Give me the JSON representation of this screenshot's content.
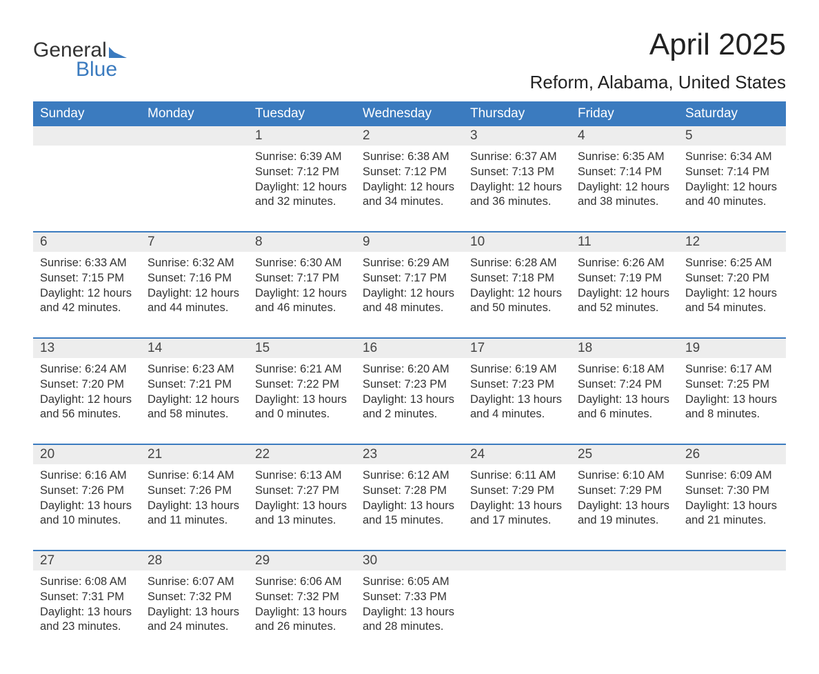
{
  "logo": {
    "word1": "General",
    "word2": "Blue",
    "color_gray": "#333333",
    "color_blue": "#3b7bbf"
  },
  "title": "April 2025",
  "location": "Reform, Alabama, United States",
  "style": {
    "header_bg": "#3b7bbf",
    "header_text": "#ffffff",
    "daynum_bg": "#ededed",
    "week_border": "#3b7bbf",
    "body_text": "#333333",
    "title_fontsize": 44,
    "location_fontsize": 26,
    "weekday_fontsize": 19,
    "cell_fontsize": 16.5,
    "columns": 7
  },
  "weekdays": [
    "Sunday",
    "Monday",
    "Tuesday",
    "Wednesday",
    "Thursday",
    "Friday",
    "Saturday"
  ],
  "weeks": [
    [
      {
        "day": ""
      },
      {
        "day": ""
      },
      {
        "day": "1",
        "sunrise": "6:39 AM",
        "sunset": "7:12 PM",
        "daylight": "12 hours and 32 minutes."
      },
      {
        "day": "2",
        "sunrise": "6:38 AM",
        "sunset": "7:12 PM",
        "daylight": "12 hours and 34 minutes."
      },
      {
        "day": "3",
        "sunrise": "6:37 AM",
        "sunset": "7:13 PM",
        "daylight": "12 hours and 36 minutes."
      },
      {
        "day": "4",
        "sunrise": "6:35 AM",
        "sunset": "7:14 PM",
        "daylight": "12 hours and 38 minutes."
      },
      {
        "day": "5",
        "sunrise": "6:34 AM",
        "sunset": "7:14 PM",
        "daylight": "12 hours and 40 minutes."
      }
    ],
    [
      {
        "day": "6",
        "sunrise": "6:33 AM",
        "sunset": "7:15 PM",
        "daylight": "12 hours and 42 minutes."
      },
      {
        "day": "7",
        "sunrise": "6:32 AM",
        "sunset": "7:16 PM",
        "daylight": "12 hours and 44 minutes."
      },
      {
        "day": "8",
        "sunrise": "6:30 AM",
        "sunset": "7:17 PM",
        "daylight": "12 hours and 46 minutes."
      },
      {
        "day": "9",
        "sunrise": "6:29 AM",
        "sunset": "7:17 PM",
        "daylight": "12 hours and 48 minutes."
      },
      {
        "day": "10",
        "sunrise": "6:28 AM",
        "sunset": "7:18 PM",
        "daylight": "12 hours and 50 minutes."
      },
      {
        "day": "11",
        "sunrise": "6:26 AM",
        "sunset": "7:19 PM",
        "daylight": "12 hours and 52 minutes."
      },
      {
        "day": "12",
        "sunrise": "6:25 AM",
        "sunset": "7:20 PM",
        "daylight": "12 hours and 54 minutes."
      }
    ],
    [
      {
        "day": "13",
        "sunrise": "6:24 AM",
        "sunset": "7:20 PM",
        "daylight": "12 hours and 56 minutes."
      },
      {
        "day": "14",
        "sunrise": "6:23 AM",
        "sunset": "7:21 PM",
        "daylight": "12 hours and 58 minutes."
      },
      {
        "day": "15",
        "sunrise": "6:21 AM",
        "sunset": "7:22 PM",
        "daylight": "13 hours and 0 minutes."
      },
      {
        "day": "16",
        "sunrise": "6:20 AM",
        "sunset": "7:23 PM",
        "daylight": "13 hours and 2 minutes."
      },
      {
        "day": "17",
        "sunrise": "6:19 AM",
        "sunset": "7:23 PM",
        "daylight": "13 hours and 4 minutes."
      },
      {
        "day": "18",
        "sunrise": "6:18 AM",
        "sunset": "7:24 PM",
        "daylight": "13 hours and 6 minutes."
      },
      {
        "day": "19",
        "sunrise": "6:17 AM",
        "sunset": "7:25 PM",
        "daylight": "13 hours and 8 minutes."
      }
    ],
    [
      {
        "day": "20",
        "sunrise": "6:16 AM",
        "sunset": "7:26 PM",
        "daylight": "13 hours and 10 minutes."
      },
      {
        "day": "21",
        "sunrise": "6:14 AM",
        "sunset": "7:26 PM",
        "daylight": "13 hours and 11 minutes."
      },
      {
        "day": "22",
        "sunrise": "6:13 AM",
        "sunset": "7:27 PM",
        "daylight": "13 hours and 13 minutes."
      },
      {
        "day": "23",
        "sunrise": "6:12 AM",
        "sunset": "7:28 PM",
        "daylight": "13 hours and 15 minutes."
      },
      {
        "day": "24",
        "sunrise": "6:11 AM",
        "sunset": "7:29 PM",
        "daylight": "13 hours and 17 minutes."
      },
      {
        "day": "25",
        "sunrise": "6:10 AM",
        "sunset": "7:29 PM",
        "daylight": "13 hours and 19 minutes."
      },
      {
        "day": "26",
        "sunrise": "6:09 AM",
        "sunset": "7:30 PM",
        "daylight": "13 hours and 21 minutes."
      }
    ],
    [
      {
        "day": "27",
        "sunrise": "6:08 AM",
        "sunset": "7:31 PM",
        "daylight": "13 hours and 23 minutes."
      },
      {
        "day": "28",
        "sunrise": "6:07 AM",
        "sunset": "7:32 PM",
        "daylight": "13 hours and 24 minutes."
      },
      {
        "day": "29",
        "sunrise": "6:06 AM",
        "sunset": "7:32 PM",
        "daylight": "13 hours and 26 minutes."
      },
      {
        "day": "30",
        "sunrise": "6:05 AM",
        "sunset": "7:33 PM",
        "daylight": "13 hours and 28 minutes."
      },
      {
        "day": ""
      },
      {
        "day": ""
      },
      {
        "day": ""
      }
    ]
  ],
  "labels": {
    "sunrise_prefix": "Sunrise: ",
    "sunset_prefix": "Sunset: ",
    "daylight_prefix": "Daylight: "
  }
}
